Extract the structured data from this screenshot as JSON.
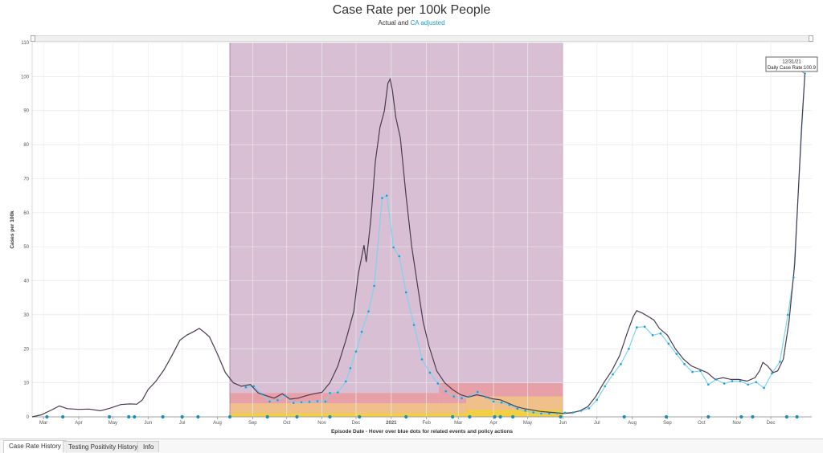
{
  "header": {
    "title": "Case Rate per 100k People",
    "subtitle_prefix": "Actual and ",
    "subtitle_link": "CA adjusted"
  },
  "tooltip": {
    "date": "12/31/21",
    "text": "Daily Case Rate:100.9"
  },
  "tabs": [
    {
      "label": "Case Rate History",
      "active": true
    },
    {
      "label": "Testing Positivity History",
      "active": false
    },
    {
      "label": "Info",
      "active": false
    }
  ],
  "colors": {
    "actual_line": "#4a3b4f",
    "adjusted_line": "#7dd3f0",
    "adjusted_dot": "#1aa0d8",
    "event_dot": "#1a8fb5",
    "purple_tier": "#d8bfd3",
    "red_tier": "#e8a0a8",
    "orange_tier": "#f0c08a",
    "yellow_tier": "#f2d040"
  },
  "chart_data": {
    "type": "line",
    "title": "Case Rate per 100k People",
    "subtitle": "Actual and CA adjusted",
    "xlabel": "Episode Date - Hover over blue dots for related events and policy actions",
    "ylabel": "Cases per 100k",
    "ylim": [
      0,
      110
    ],
    "yticks": [
      0,
      10,
      20,
      30,
      40,
      50,
      60,
      70,
      80,
      90,
      100,
      110
    ],
    "xlim": [
      "2020-02-20",
      "2022-01-06"
    ],
    "xticks": [
      {
        "label": "Mar",
        "date": "2020-03-01"
      },
      {
        "label": "Apr",
        "date": "2020-04-01"
      },
      {
        "label": "May",
        "date": "2020-05-01"
      },
      {
        "label": "Jun",
        "date": "2020-06-01"
      },
      {
        "label": "Jul",
        "date": "2020-07-01"
      },
      {
        "label": "Aug",
        "date": "2020-08-01"
      },
      {
        "label": "Sep",
        "date": "2020-09-01"
      },
      {
        "label": "Oct",
        "date": "2020-10-01"
      },
      {
        "label": "Nov",
        "date": "2020-11-01"
      },
      {
        "label": "Dec",
        "date": "2020-12-01"
      },
      {
        "label": "2021",
        "date": "2021-01-01",
        "bold": true
      },
      {
        "label": "Feb",
        "date": "2021-02-01"
      },
      {
        "label": "Mar",
        "date": "2021-03-01"
      },
      {
        "label": "Apr",
        "date": "2021-04-01"
      },
      {
        "label": "May",
        "date": "2021-05-01"
      },
      {
        "label": "Jun",
        "date": "2021-06-01"
      },
      {
        "label": "Jul",
        "date": "2021-07-01"
      },
      {
        "label": "Aug",
        "date": "2021-08-01"
      },
      {
        "label": "Sep",
        "date": "2021-09-01"
      },
      {
        "label": "Oct",
        "date": "2021-10-01"
      },
      {
        "label": "Nov",
        "date": "2021-11-01"
      },
      {
        "label": "Dec",
        "date": "2021-12-01"
      }
    ],
    "grid": true,
    "tier_bands": [
      {
        "name": "purple",
        "x_start": "2020-08-12",
        "x_end": "2021-06-01",
        "y_min": 0,
        "y_max": 110
      },
      {
        "name": "red",
        "x_start": "2020-08-12",
        "x_end": "2021-02-12",
        "y_min": 0,
        "y_max": 7
      },
      {
        "name": "red",
        "x_start": "2021-02-12",
        "x_end": "2021-06-01",
        "y_min": 0,
        "y_max": 10
      },
      {
        "name": "orange",
        "x_start": "2020-08-12",
        "x_end": "2021-03-08",
        "y_min": 0,
        "y_max": 4
      },
      {
        "name": "orange",
        "x_start": "2021-03-08",
        "x_end": "2021-06-01",
        "y_min": 0,
        "y_max": 6
      },
      {
        "name": "yellow",
        "x_start": "2020-08-12",
        "x_end": "2021-03-08",
        "y_min": 0,
        "y_max": 1
      },
      {
        "name": "yellow",
        "x_start": "2021-03-08",
        "x_end": "2021-06-01",
        "y_min": 0,
        "y_max": 2
      }
    ],
    "series": [
      {
        "name": "Actual",
        "points": [
          [
            "2020-02-20",
            0
          ],
          [
            "2020-02-28",
            0.6
          ],
          [
            "2020-03-08",
            2.0
          ],
          [
            "2020-03-15",
            3.2
          ],
          [
            "2020-03-22",
            2.4
          ],
          [
            "2020-04-01",
            2.2
          ],
          [
            "2020-04-10",
            2.3
          ],
          [
            "2020-04-20",
            1.8
          ],
          [
            "2020-04-28",
            2.5
          ],
          [
            "2020-05-08",
            3.6
          ],
          [
            "2020-05-16",
            3.8
          ],
          [
            "2020-05-22",
            3.7
          ],
          [
            "2020-05-27",
            5.0
          ],
          [
            "2020-06-01",
            8.0
          ],
          [
            "2020-06-08",
            10.5
          ],
          [
            "2020-06-15",
            13.8
          ],
          [
            "2020-06-22",
            18.0
          ],
          [
            "2020-06-29",
            22.5
          ],
          [
            "2020-07-05",
            24.0
          ],
          [
            "2020-07-12",
            25.2
          ],
          [
            "2020-07-16",
            26.0
          ],
          [
            "2020-07-20",
            25.0
          ],
          [
            "2020-07-25",
            23.5
          ],
          [
            "2020-08-01",
            18.5
          ],
          [
            "2020-08-08",
            13.0
          ],
          [
            "2020-08-15",
            10.0
          ],
          [
            "2020-08-22",
            9.0
          ],
          [
            "2020-08-30",
            9.5
          ],
          [
            "2020-09-06",
            7.0
          ],
          [
            "2020-09-13",
            6.2
          ],
          [
            "2020-09-20",
            5.5
          ],
          [
            "2020-09-27",
            6.8
          ],
          [
            "2020-10-04",
            5.2
          ],
          [
            "2020-10-11",
            5.5
          ],
          [
            "2020-10-18",
            6.2
          ],
          [
            "2020-10-25",
            6.8
          ],
          [
            "2020-11-01",
            7.2
          ],
          [
            "2020-11-08",
            10.0
          ],
          [
            "2020-11-15",
            15.0
          ],
          [
            "2020-11-22",
            22.5
          ],
          [
            "2020-11-29",
            31.0
          ],
          [
            "2020-12-03",
            42.0
          ],
          [
            "2020-12-08",
            50.5
          ],
          [
            "2020-12-10",
            45.5
          ],
          [
            "2020-12-14",
            58.0
          ],
          [
            "2020-12-18",
            75.0
          ],
          [
            "2020-12-22",
            85.0
          ],
          [
            "2020-12-26",
            90.0
          ],
          [
            "2020-12-29",
            98.0
          ],
          [
            "2020-12-31",
            99.3
          ],
          [
            "2021-01-02",
            96.0
          ],
          [
            "2021-01-05",
            88.0
          ],
          [
            "2021-01-09",
            82.0
          ],
          [
            "2021-01-14",
            65.0
          ],
          [
            "2021-01-19",
            50.0
          ],
          [
            "2021-01-24",
            39.0
          ],
          [
            "2021-01-29",
            28.0
          ],
          [
            "2021-02-03",
            21.0
          ],
          [
            "2021-02-10",
            13.5
          ],
          [
            "2021-02-17",
            10.0
          ],
          [
            "2021-02-24",
            8.0
          ],
          [
            "2021-03-03",
            6.5
          ],
          [
            "2021-03-10",
            5.8
          ],
          [
            "2021-03-17",
            6.5
          ],
          [
            "2021-03-24",
            6.0
          ],
          [
            "2021-03-31",
            5.3
          ],
          [
            "2021-04-07",
            5.0
          ],
          [
            "2021-04-14",
            4.0
          ],
          [
            "2021-04-21",
            3.0
          ],
          [
            "2021-04-28",
            2.4
          ],
          [
            "2021-05-05",
            2.0
          ],
          [
            "2021-05-12",
            1.6
          ],
          [
            "2021-05-19",
            1.4
          ],
          [
            "2021-05-26",
            1.2
          ],
          [
            "2021-06-02",
            1.0
          ],
          [
            "2021-06-09",
            1.2
          ],
          [
            "2021-06-16",
            1.8
          ],
          [
            "2021-06-23",
            3.0
          ],
          [
            "2021-06-30",
            6.0
          ],
          [
            "2021-07-07",
            10.0
          ],
          [
            "2021-07-14",
            13.5
          ],
          [
            "2021-07-21",
            18.0
          ],
          [
            "2021-07-28",
            25.0
          ],
          [
            "2021-08-02",
            29.5
          ],
          [
            "2021-08-05",
            31.2
          ],
          [
            "2021-08-10",
            30.5
          ],
          [
            "2021-08-15",
            29.5
          ],
          [
            "2021-08-20",
            28.5
          ],
          [
            "2021-08-25",
            26.0
          ],
          [
            "2021-09-01",
            24.0
          ],
          [
            "2021-09-08",
            20.0
          ],
          [
            "2021-09-15",
            17.0
          ],
          [
            "2021-09-22",
            15.0
          ],
          [
            "2021-09-29",
            14.0
          ],
          [
            "2021-10-06",
            13.0
          ],
          [
            "2021-10-13",
            11.0
          ],
          [
            "2021-10-20",
            11.5
          ],
          [
            "2021-10-27",
            11.0
          ],
          [
            "2021-11-03",
            11.0
          ],
          [
            "2021-11-10",
            10.5
          ],
          [
            "2021-11-17",
            11.5
          ],
          [
            "2021-11-21",
            13.5
          ],
          [
            "2021-11-24",
            16.0
          ],
          [
            "2021-11-28",
            15.0
          ],
          [
            "2021-12-03",
            13.0
          ],
          [
            "2021-12-07",
            13.5
          ],
          [
            "2021-12-12",
            17.0
          ],
          [
            "2021-12-17",
            28.0
          ],
          [
            "2021-12-22",
            45.0
          ],
          [
            "2021-12-25",
            65.0
          ],
          [
            "2021-12-28",
            85.0
          ],
          [
            "2021-12-31",
            100.9
          ]
        ]
      },
      {
        "name": "CA adjusted",
        "points": [
          [
            "2020-08-26",
            8.7
          ],
          [
            "2020-09-02",
            9.0
          ],
          [
            "2020-09-09",
            6.7
          ],
          [
            "2020-09-16",
            4.5
          ],
          [
            "2020-09-23",
            4.9
          ],
          [
            "2020-09-30",
            6.2
          ],
          [
            "2020-10-07",
            4.1
          ],
          [
            "2020-10-14",
            4.3
          ],
          [
            "2020-10-21",
            4.4
          ],
          [
            "2020-10-28",
            4.6
          ],
          [
            "2020-11-04",
            4.5
          ],
          [
            "2020-11-08",
            7.0
          ],
          [
            "2020-11-15",
            7.2
          ],
          [
            "2020-11-22",
            10.4
          ],
          [
            "2020-11-26",
            14.3
          ],
          [
            "2020-12-01",
            19.2
          ],
          [
            "2020-12-06",
            25.0
          ],
          [
            "2020-12-12",
            31.0
          ],
          [
            "2020-12-17",
            38.5
          ],
          [
            "2020-12-24",
            64.3
          ],
          [
            "2020-12-28",
            65.0
          ],
          [
            "2021-01-03",
            49.8
          ],
          [
            "2021-01-08",
            47.2
          ],
          [
            "2021-01-14",
            36.6
          ],
          [
            "2021-01-21",
            27.0
          ],
          [
            "2021-01-28",
            16.9
          ],
          [
            "2021-02-04",
            13.0
          ],
          [
            "2021-02-11",
            9.8
          ],
          [
            "2021-02-18",
            7.5
          ],
          [
            "2021-02-25",
            6.0
          ],
          [
            "2021-03-04",
            5.5
          ],
          [
            "2021-03-11",
            6.0
          ],
          [
            "2021-03-18",
            7.3
          ],
          [
            "2021-03-25",
            5.8
          ],
          [
            "2021-04-01",
            4.5
          ],
          [
            "2021-04-08",
            4.2
          ],
          [
            "2021-04-15",
            3.5
          ],
          [
            "2021-04-22",
            2.4
          ],
          [
            "2021-04-29",
            1.8
          ],
          [
            "2021-05-06",
            1.3
          ],
          [
            "2021-05-13",
            1.0
          ],
          [
            "2021-05-20",
            1.0
          ],
          [
            "2021-05-27",
            1.1
          ],
          [
            "2021-06-03",
            1.2
          ],
          [
            "2021-06-10",
            1.3
          ],
          [
            "2021-06-17",
            1.8
          ],
          [
            "2021-06-24",
            2.5
          ],
          [
            "2021-07-01",
            5.0
          ],
          [
            "2021-07-08",
            9.0
          ],
          [
            "2021-07-15",
            12.5
          ],
          [
            "2021-07-22",
            15.5
          ],
          [
            "2021-07-29",
            20.0
          ],
          [
            "2021-08-05",
            26.3
          ],
          [
            "2021-08-12",
            26.5
          ],
          [
            "2021-08-19",
            24.0
          ],
          [
            "2021-08-26",
            24.5
          ],
          [
            "2021-09-02",
            21.5
          ],
          [
            "2021-09-09",
            18.5
          ],
          [
            "2021-09-16",
            15.5
          ],
          [
            "2021-09-23",
            13.2
          ],
          [
            "2021-09-30",
            13.5
          ],
          [
            "2021-10-07",
            9.5
          ],
          [
            "2021-10-14",
            11.0
          ],
          [
            "2021-10-21",
            9.8
          ],
          [
            "2021-10-28",
            10.5
          ],
          [
            "2021-11-04",
            10.5
          ],
          [
            "2021-11-11",
            9.5
          ],
          [
            "2021-11-18",
            10.2
          ],
          [
            "2021-11-25",
            8.5
          ],
          [
            "2021-12-02",
            12.8
          ],
          [
            "2021-12-09",
            16.2
          ],
          [
            "2021-12-16",
            30.0
          ],
          [
            "2021-12-21",
            41.0
          ],
          [
            "2021-12-31",
            100.9
          ]
        ]
      }
    ],
    "event_dots": [
      "2020-03-04",
      "2020-03-18",
      "2020-04-28",
      "2020-05-15",
      "2020-05-20",
      "2020-06-14",
      "2020-07-01",
      "2020-07-15",
      "2020-08-12",
      "2020-09-14",
      "2020-10-10",
      "2020-11-08",
      "2020-12-04",
      "2021-01-14",
      "2021-02-24",
      "2021-03-11",
      "2021-04-02",
      "2021-04-07",
      "2021-04-18",
      "2021-05-30",
      "2021-07-25",
      "2021-08-31",
      "2021-10-07",
      "2021-11-05",
      "2021-11-15",
      "2021-12-15",
      "2021-12-24"
    ]
  }
}
